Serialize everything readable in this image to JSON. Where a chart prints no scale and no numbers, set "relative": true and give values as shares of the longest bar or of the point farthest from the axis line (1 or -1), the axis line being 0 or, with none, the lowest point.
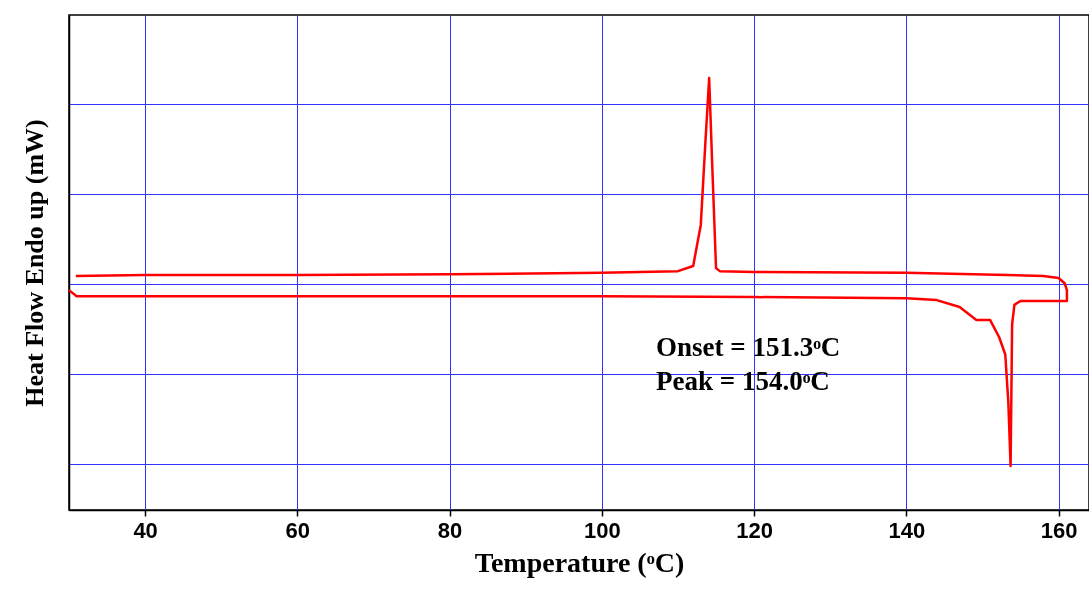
{
  "chart_data": {
    "type": "line",
    "relative": true,
    "xlabel": "Temperature (ᵒC)",
    "ylabel": "Heat Flow Endo up (mW)",
    "xlim": [
      30,
      164
    ],
    "xticks": [
      40,
      60,
      80,
      100,
      120,
      140,
      160
    ],
    "grid": true,
    "annotations": [
      "Onset = 151.3ᵒC",
      "Peak = 154.0ᵒC"
    ],
    "series": [
      {
        "color": "#ff0000",
        "x": [
          30.9,
          40,
          60,
          80,
          100,
          110,
          112,
          113,
          113.6,
          114.1,
          114.5,
          115,
          115.5,
          120,
          140,
          158,
          160,
          160.8,
          161.1,
          161.1,
          158,
          155,
          154.2,
          153.9,
          153.7,
          153.4,
          153.0,
          152.2,
          151.0,
          149.2,
          147,
          144,
          140,
          120,
          100,
          80,
          60,
          40,
          31,
          30
        ],
        "values": [
          0.542,
          0.544,
          0.544,
          0.546,
          0.549,
          0.553,
          0.565,
          0.66,
          0.85,
          1.0,
          0.8,
          0.56,
          0.553,
          0.551,
          0.549,
          0.542,
          0.537,
          0.525,
          0.509,
          0.484,
          0.484,
          0.484,
          0.475,
          0.43,
          0.102,
          0.25,
          0.36,
          0.4,
          0.44,
          0.44,
          0.47,
          0.486,
          0.49,
          0.493,
          0.495,
          0.495,
          0.495,
          0.495,
          0.495,
          0.509
        ]
      }
    ]
  }
}
